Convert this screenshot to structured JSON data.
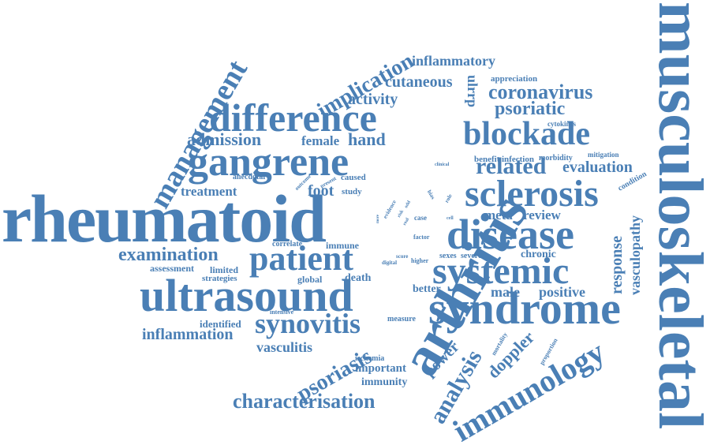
{
  "colors": {
    "word": "#4a7fb5",
    "background": "#ffffff"
  },
  "words": {
    "rheumatoid": "rheumatoid",
    "musculoskeletal": "musculoskeletal",
    "arthritis": "arthritis",
    "syndrome": "syndrome",
    "ultrasound": "ultrasound",
    "gangrene": "gangrene",
    "difference": "difference",
    "disease": "disease",
    "systemic": "systemic",
    "sclerosis": "sclerosis",
    "management": "management",
    "patient": "patient",
    "immunology": "immunology",
    "blockade": "blockade",
    "synovitis": "synovitis",
    "characterisation": "characterisation",
    "analysis": "analysis",
    "psoriasis": "psoriasis",
    "related": "related",
    "implication": "implication",
    "coronavirus": "coronavirus",
    "inflammatory": "inflammatory",
    "cutaneous": "cutaneous",
    "activity": "activity",
    "psoriatic": "psoriatic",
    "admission": "admission",
    "female": "female",
    "hand": "hand",
    "examination": "examination",
    "inflammation": "inflammation",
    "evaluation": "evaluation",
    "response": "response",
    "vasculopathy": "vasculopathy",
    "doppler": "doppler",
    "power": "power",
    "vasculitis": "vasculitis",
    "treatment": "treatment",
    "foot": "foot",
    "meta": "meta",
    "review": "review",
    "positive": "positive",
    "male": "male",
    "chronic": "chronic",
    "important": "important",
    "immunity": "immunity",
    "death": "death",
    "global": "global",
    "better": "better",
    "identified": "identified",
    "assessment": "assessment",
    "limited": "limited",
    "strategies": "strategies",
    "immune": "immune",
    "correlate": "correlate",
    "anecdotal": "anecdotal",
    "caused": "caused",
    "study": "study",
    "infection": "infection",
    "morbidity": "morbidity",
    "benefit": "benefit",
    "mitigation": "mitigation",
    "cytokines": "cytokines",
    "appreciation": "appreciation",
    "condition": "condition",
    "ulrrp": "ulrrp",
    "intensive": "intensive",
    "measure": "measure",
    "ischemia": "ischemia",
    "mortality": "mortality",
    "proportion": "proportion",
    "sexes": "sexes",
    "severe": "severe",
    "score": "score",
    "higher": "higher",
    "digital": "digital",
    "factor": "factor",
    "case": "case",
    "cell": "cell",
    "role": "role",
    "bias": "bias",
    "clinical": "clinical",
    "evidence": "evidence",
    "risk": "risk",
    "real": "real",
    "odd": "odd",
    "more": "more",
    "outcome": "outcome",
    "present": "present"
  }
}
